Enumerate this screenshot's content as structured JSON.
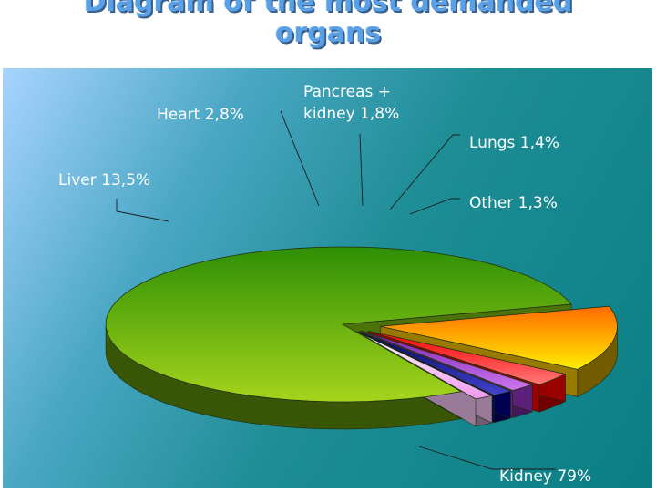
{
  "title": {
    "line1": "Diagram of the most demanded",
    "line2": "organs"
  },
  "chart_data": {
    "type": "pie",
    "title": "Diagram of the most demanded organs",
    "style": "3d-exploded",
    "categories": [
      "Kidney",
      "Liver",
      "Heart",
      "Pancreas + kidney",
      "Lungs",
      "Other"
    ],
    "values": [
      79,
      13.5,
      2.8,
      1.8,
      1.4,
      1.3
    ],
    "labels": [
      {
        "line1": "Kidney 79%",
        "line2": ""
      },
      {
        "line1": "Liver 13,5%",
        "line2": ""
      },
      {
        "line1": "Heart 2,8%",
        "line2": ""
      },
      {
        "line1": "Pancreas +",
        "line2": "kidney 1,8%"
      },
      {
        "line1": "Lungs 1,4%",
        "line2": ""
      },
      {
        "line1": "Other 1,3%",
        "line2": ""
      }
    ],
    "colors": [
      "#7fbf10",
      "#ffcc00",
      "#ff0000",
      "#9933cc",
      "#000088",
      "#ffccff"
    ],
    "legend": "none"
  }
}
